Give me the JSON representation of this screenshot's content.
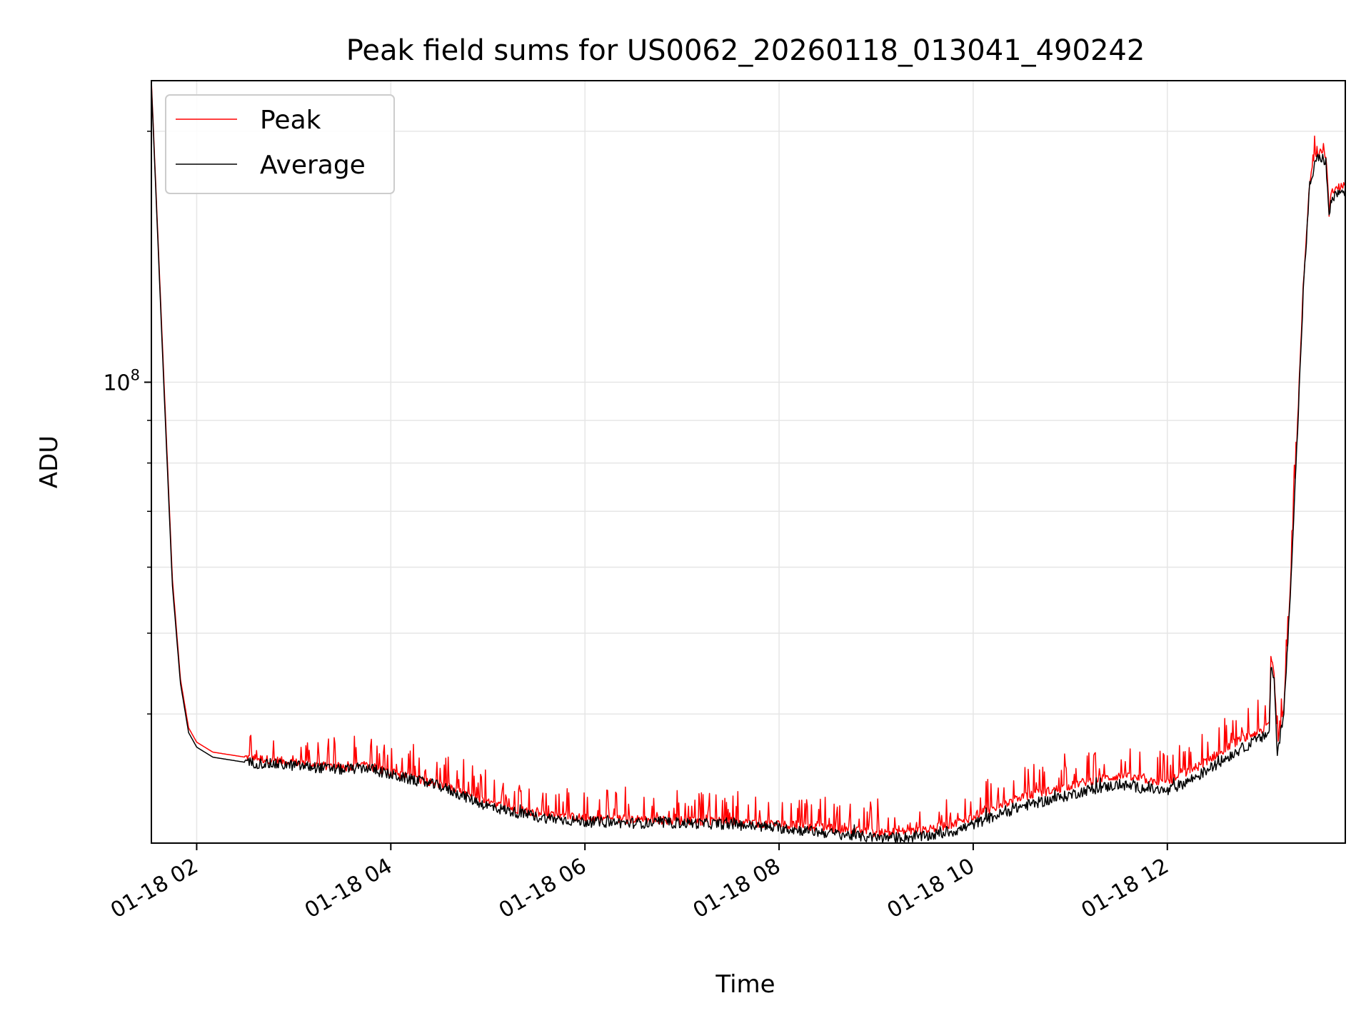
{
  "chart_data": {
    "type": "line",
    "title": "Peak field sums for US0062_20260118_013041_490242",
    "xlabel": "Time",
    "ylabel": "ADU",
    "yscale": "log",
    "ylim": [
      28000000,
      230000000
    ],
    "xlim": [
      "2026-01-18 01:32",
      "2026-01-18 13:50"
    ],
    "x_ticks": [
      {
        "value": "2026-01-18 02:00",
        "label": "01-18 02"
      },
      {
        "value": "2026-01-18 04:00",
        "label": "01-18 04"
      },
      {
        "value": "2026-01-18 06:00",
        "label": "01-18 06"
      },
      {
        "value": "2026-01-18 08:00",
        "label": "01-18 08"
      },
      {
        "value": "2026-01-18 10:00",
        "label": "01-18 10"
      },
      {
        "value": "2026-01-18 12:00",
        "label": "01-18 12"
      }
    ],
    "y_major_ticks": [
      {
        "value": 100000000,
        "label_base": "10",
        "label_exp": "8"
      }
    ],
    "y_minor_ticks": [
      40000000,
      50000000,
      60000000,
      70000000,
      80000000,
      90000000,
      200000000
    ],
    "grid": true,
    "legend_position": "top-left",
    "series": [
      {
        "name": "Peak",
        "color": "#ff0000",
        "noise": {
          "spike_prob": 0.22,
          "spike_max": 0.09,
          "jitter": 0.012
        },
        "x": [
          "2026-01-18 01:32",
          "2026-01-18 01:36",
          "2026-01-18 01:40",
          "2026-01-18 01:45",
          "2026-01-18 01:50",
          "2026-01-18 01:55",
          "2026-01-18 02:00",
          "2026-01-18 02:10",
          "2026-01-18 02:30",
          "2026-01-18 03:00",
          "2026-01-18 03:30",
          "2026-01-18 03:45",
          "2026-01-18 04:00",
          "2026-01-18 04:30",
          "2026-01-18 05:00",
          "2026-01-18 05:30",
          "2026-01-18 06:00",
          "2026-01-18 06:30",
          "2026-01-18 07:00",
          "2026-01-18 07:30",
          "2026-01-18 08:00",
          "2026-01-18 08:30",
          "2026-01-18 09:00",
          "2026-01-18 09:30",
          "2026-01-18 09:50",
          "2026-01-18 10:10",
          "2026-01-18 10:30",
          "2026-01-18 10:55",
          "2026-01-18 11:10",
          "2026-01-18 11:30",
          "2026-01-18 11:50",
          "2026-01-18 12:00",
          "2026-01-18 12:20",
          "2026-01-18 12:40",
          "2026-01-18 12:55",
          "2026-01-18 13:00",
          "2026-01-18 13:03",
          "2026-01-18 13:04",
          "2026-01-18 13:06",
          "2026-01-18 13:08",
          "2026-01-18 13:10",
          "2026-01-18 13:12",
          "2026-01-18 13:15",
          "2026-01-18 13:20",
          "2026-01-18 13:24",
          "2026-01-18 13:28",
          "2026-01-18 13:32",
          "2026-01-18 13:35",
          "2026-01-18 13:38",
          "2026-01-18 13:40",
          "2026-01-18 13:41",
          "2026-01-18 13:45",
          "2026-01-18 13:50"
        ],
        "y": [
          230000000,
          150000000,
          98000000,
          58000000,
          44000000,
          38500000,
          37000000,
          36000000,
          35500000,
          35000000,
          34500000,
          34700000,
          34000000,
          33000000,
          31300000,
          30400000,
          30000000,
          29900000,
          29800000,
          29700000,
          29500000,
          29200000,
          28800000,
          29000000,
          29600000,
          30700000,
          31800000,
          32600000,
          33200000,
          33700000,
          33300000,
          33100000,
          34700000,
          36800000,
          38000000,
          38500000,
          39000000,
          47000000,
          45000000,
          37000000,
          38600000,
          41000000,
          52000000,
          85000000,
          130000000,
          175000000,
          188000000,
          189000000,
          188000000,
          160000000,
          168000000,
          171000000,
          172000000
        ]
      },
      {
        "name": "Average",
        "color": "#000000",
        "noise": {
          "spike_prob": 0.05,
          "spike_max": 0.02,
          "jitter": 0.015
        },
        "x": [
          "2026-01-18 01:32",
          "2026-01-18 01:36",
          "2026-01-18 01:40",
          "2026-01-18 01:45",
          "2026-01-18 01:50",
          "2026-01-18 01:55",
          "2026-01-18 02:00",
          "2026-01-18 02:10",
          "2026-01-18 02:30",
          "2026-01-18 03:00",
          "2026-01-18 03:30",
          "2026-01-18 03:45",
          "2026-01-18 04:00",
          "2026-01-18 04:30",
          "2026-01-18 05:00",
          "2026-01-18 05:30",
          "2026-01-18 06:00",
          "2026-01-18 06:30",
          "2026-01-18 07:00",
          "2026-01-18 07:30",
          "2026-01-18 08:00",
          "2026-01-18 08:30",
          "2026-01-18 09:00",
          "2026-01-18 09:30",
          "2026-01-18 09:50",
          "2026-01-18 10:10",
          "2026-01-18 10:30",
          "2026-01-18 10:55",
          "2026-01-18 11:10",
          "2026-01-18 11:30",
          "2026-01-18 11:50",
          "2026-01-18 12:00",
          "2026-01-18 12:20",
          "2026-01-18 12:40",
          "2026-01-18 12:55",
          "2026-01-18 13:00",
          "2026-01-18 13:03",
          "2026-01-18 13:04",
          "2026-01-18 13:06",
          "2026-01-18 13:08",
          "2026-01-18 13:10",
          "2026-01-18 13:12",
          "2026-01-18 13:15",
          "2026-01-18 13:20",
          "2026-01-18 13:24",
          "2026-01-18 13:28",
          "2026-01-18 13:32",
          "2026-01-18 13:35",
          "2026-01-18 13:38",
          "2026-01-18 13:40",
          "2026-01-18 13:41",
          "2026-01-18 13:45",
          "2026-01-18 13:50"
        ],
        "y": [
          228000000,
          148000000,
          96000000,
          57000000,
          43500000,
          38000000,
          36500000,
          35500000,
          35000000,
          34700000,
          34300000,
          34500000,
          33800000,
          32800000,
          31000000,
          30100000,
          29700000,
          29600000,
          29600000,
          29500000,
          29200000,
          28800000,
          28400000,
          28500000,
          29000000,
          30000000,
          31000000,
          31800000,
          32400000,
          32900000,
          32500000,
          32300000,
          33800000,
          35800000,
          37200000,
          37600000,
          38200000,
          45500000,
          44000000,
          36000000,
          37800000,
          40000000,
          51000000,
          83000000,
          128000000,
          172000000,
          185000000,
          186000000,
          184000000,
          157000000,
          165000000,
          168000000,
          169000000
        ]
      }
    ]
  }
}
